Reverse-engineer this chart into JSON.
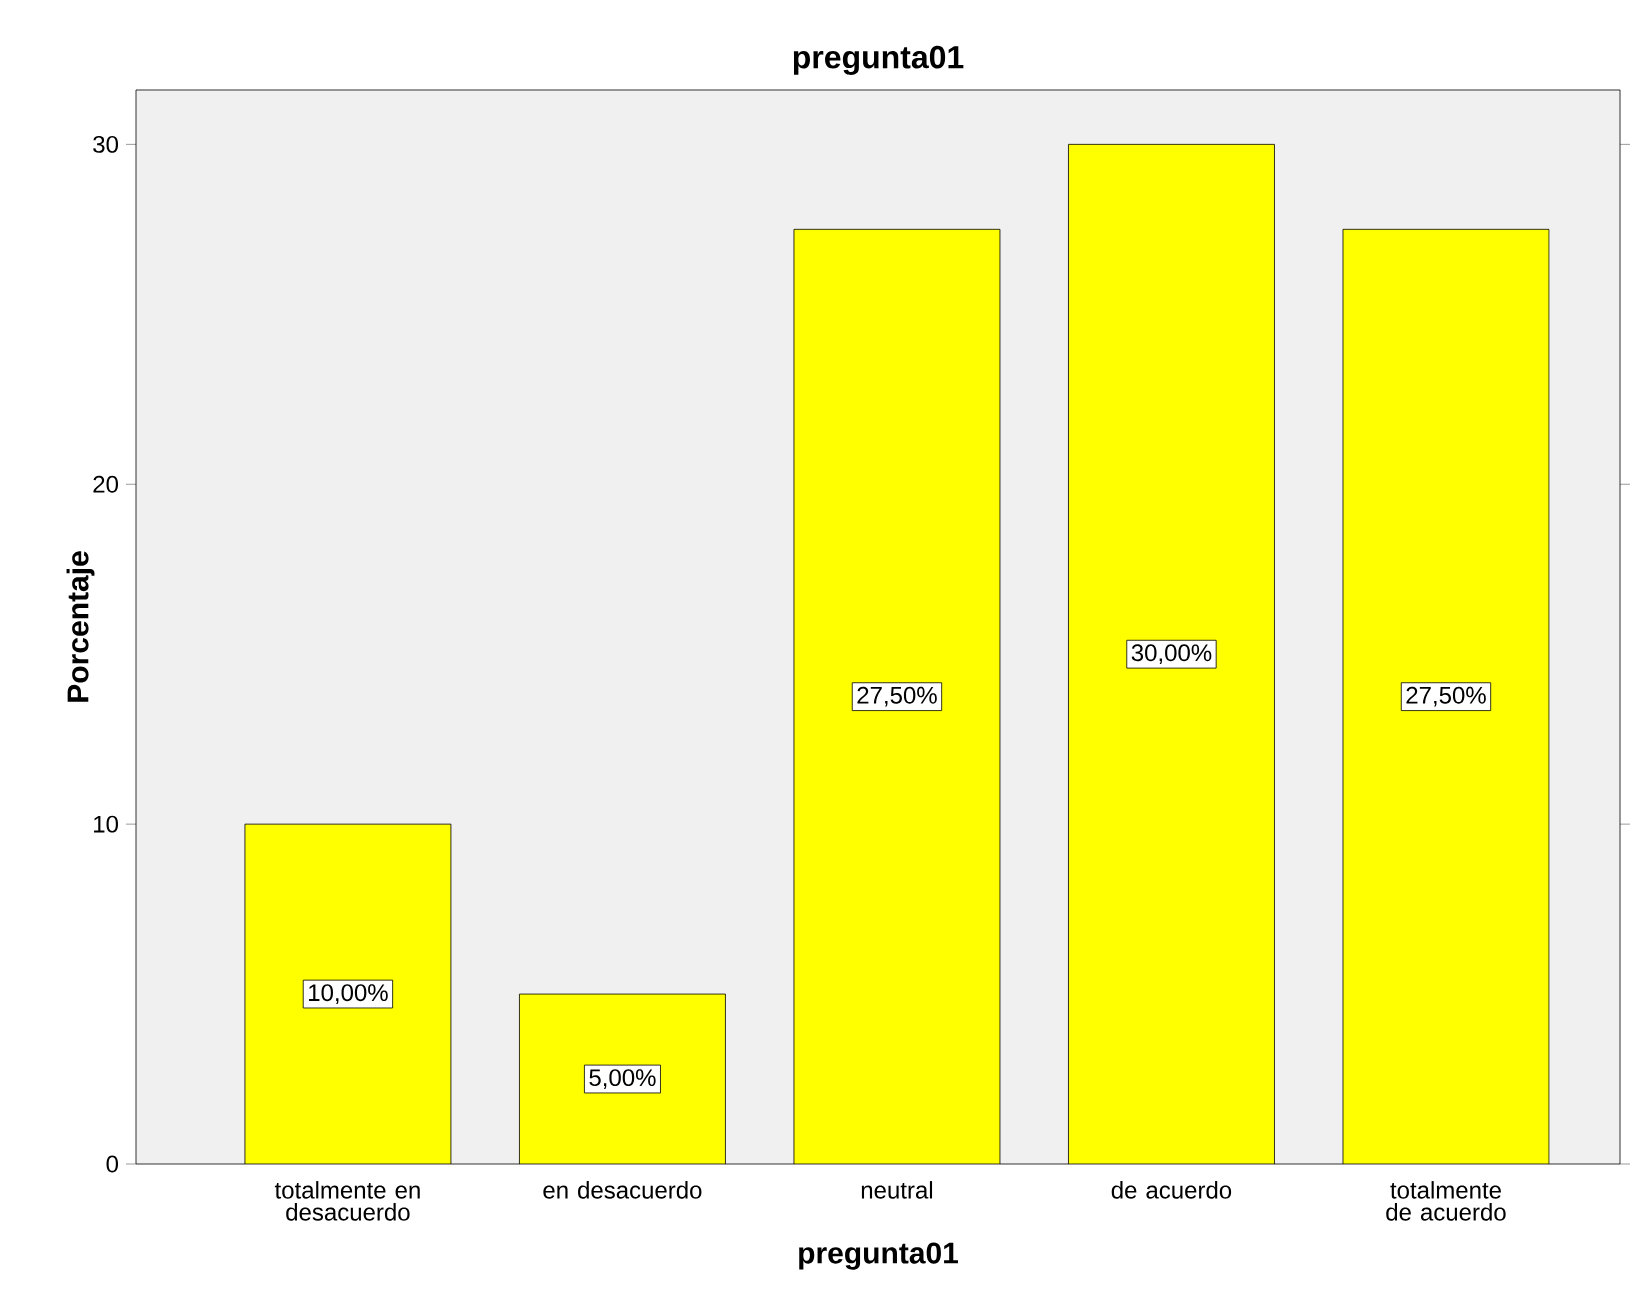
{
  "chart_data": {
    "type": "bar",
    "title": "pregunta01",
    "xlabel": "pregunta01",
    "ylabel": "Porcentaje",
    "categories": [
      "totalmente en desacuerdo",
      "en desacuerdo",
      "neutral",
      "de acuerdo",
      "totalmente de acuerdo"
    ],
    "values": [
      10,
      5,
      27.5,
      30,
      27.5
    ],
    "value_labels": [
      "10,00%",
      "5,00%",
      "27,50%",
      "30,00%",
      "27,50%"
    ],
    "color": "#ffff00",
    "ylim": [
      0,
      31.6
    ],
    "yticks": [
      0,
      10,
      20,
      30
    ],
    "grid": false
  }
}
